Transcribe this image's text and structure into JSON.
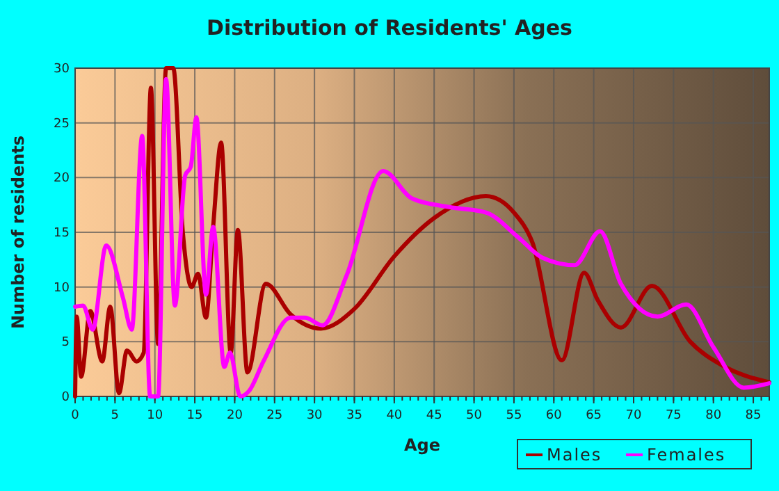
{
  "chart_data": {
    "type": "line",
    "title": "Distribution of Residents' Ages",
    "xlabel": "Age",
    "ylabel": "Number of residents",
    "xlim": [
      0,
      87
    ],
    "xticks": [
      0,
      5,
      10,
      15,
      20,
      25,
      30,
      35,
      40,
      45,
      50,
      55,
      60,
      65,
      70,
      75,
      80,
      85
    ],
    "ylim": [
      0,
      30
    ],
    "yticks": [
      0,
      5,
      10,
      15,
      20,
      25,
      30
    ],
    "grid": true,
    "legend": "bottom right",
    "line_style": "solid",
    "series": [
      {
        "name": "Males",
        "color": "#aa0000",
        "x": [
          0,
          0.2,
          0.75,
          1.9,
          3.4,
          4.4,
          5.5,
          6.5,
          7.7,
          8.6,
          9.5,
          10.4,
          11.4,
          12.3,
          13.5,
          14.6,
          15.4,
          16.4,
          17.3,
          18.3,
          19.5,
          20.4,
          21.6,
          23.9,
          27,
          30.8,
          35,
          40,
          45,
          51.5,
          55,
          57.3,
          61,
          63.8,
          65.5,
          68.4,
          72.3,
          77.1,
          81.2,
          87
        ],
        "values": [
          0,
          7.3,
          1.8,
          7.8,
          3.2,
          8.2,
          0.3,
          4.2,
          3.2,
          4,
          28.2,
          4.8,
          30,
          30,
          15,
          10,
          11.2,
          7.2,
          15.5,
          23.2,
          4,
          15.2,
          2.2,
          10.3,
          7.5,
          6.2,
          8,
          12.8,
          16.3,
          18.3,
          16.8,
          14.1,
          3.3,
          11.3,
          8.8,
          6.3,
          10.1,
          5,
          2.8,
          1.3
        ]
      },
      {
        "name": "Females",
        "color": "#ff00ff",
        "x": [
          0,
          1,
          2.2,
          3.9,
          6,
          7.1,
          8.4,
          9.4,
          10.4,
          11.4,
          12.5,
          13.8,
          14.5,
          15.2,
          16.4,
          17.3,
          18.7,
          19.4,
          20.7,
          21.8,
          23.6,
          27,
          28.8,
          31,
          34,
          38.6,
          42.2,
          46.9,
          51.5,
          55.6,
          58.5,
          62.6,
          65.8,
          68.4,
          73,
          76.6,
          80,
          83.8,
          87
        ],
        "values": [
          8.2,
          8.3,
          6.1,
          13.8,
          9,
          6.1,
          23.8,
          0,
          0,
          29,
          8.3,
          20.2,
          21,
          25.5,
          9.3,
          15.5,
          2.7,
          4,
          0,
          0.5,
          3.2,
          7.2,
          7.2,
          6.5,
          11,
          20.6,
          18.1,
          17.3,
          16.8,
          14.5,
          12.7,
          12,
          15.1,
          10.3,
          7.3,
          8.4,
          4.5,
          0.8,
          1.2
        ]
      }
    ]
  }
}
